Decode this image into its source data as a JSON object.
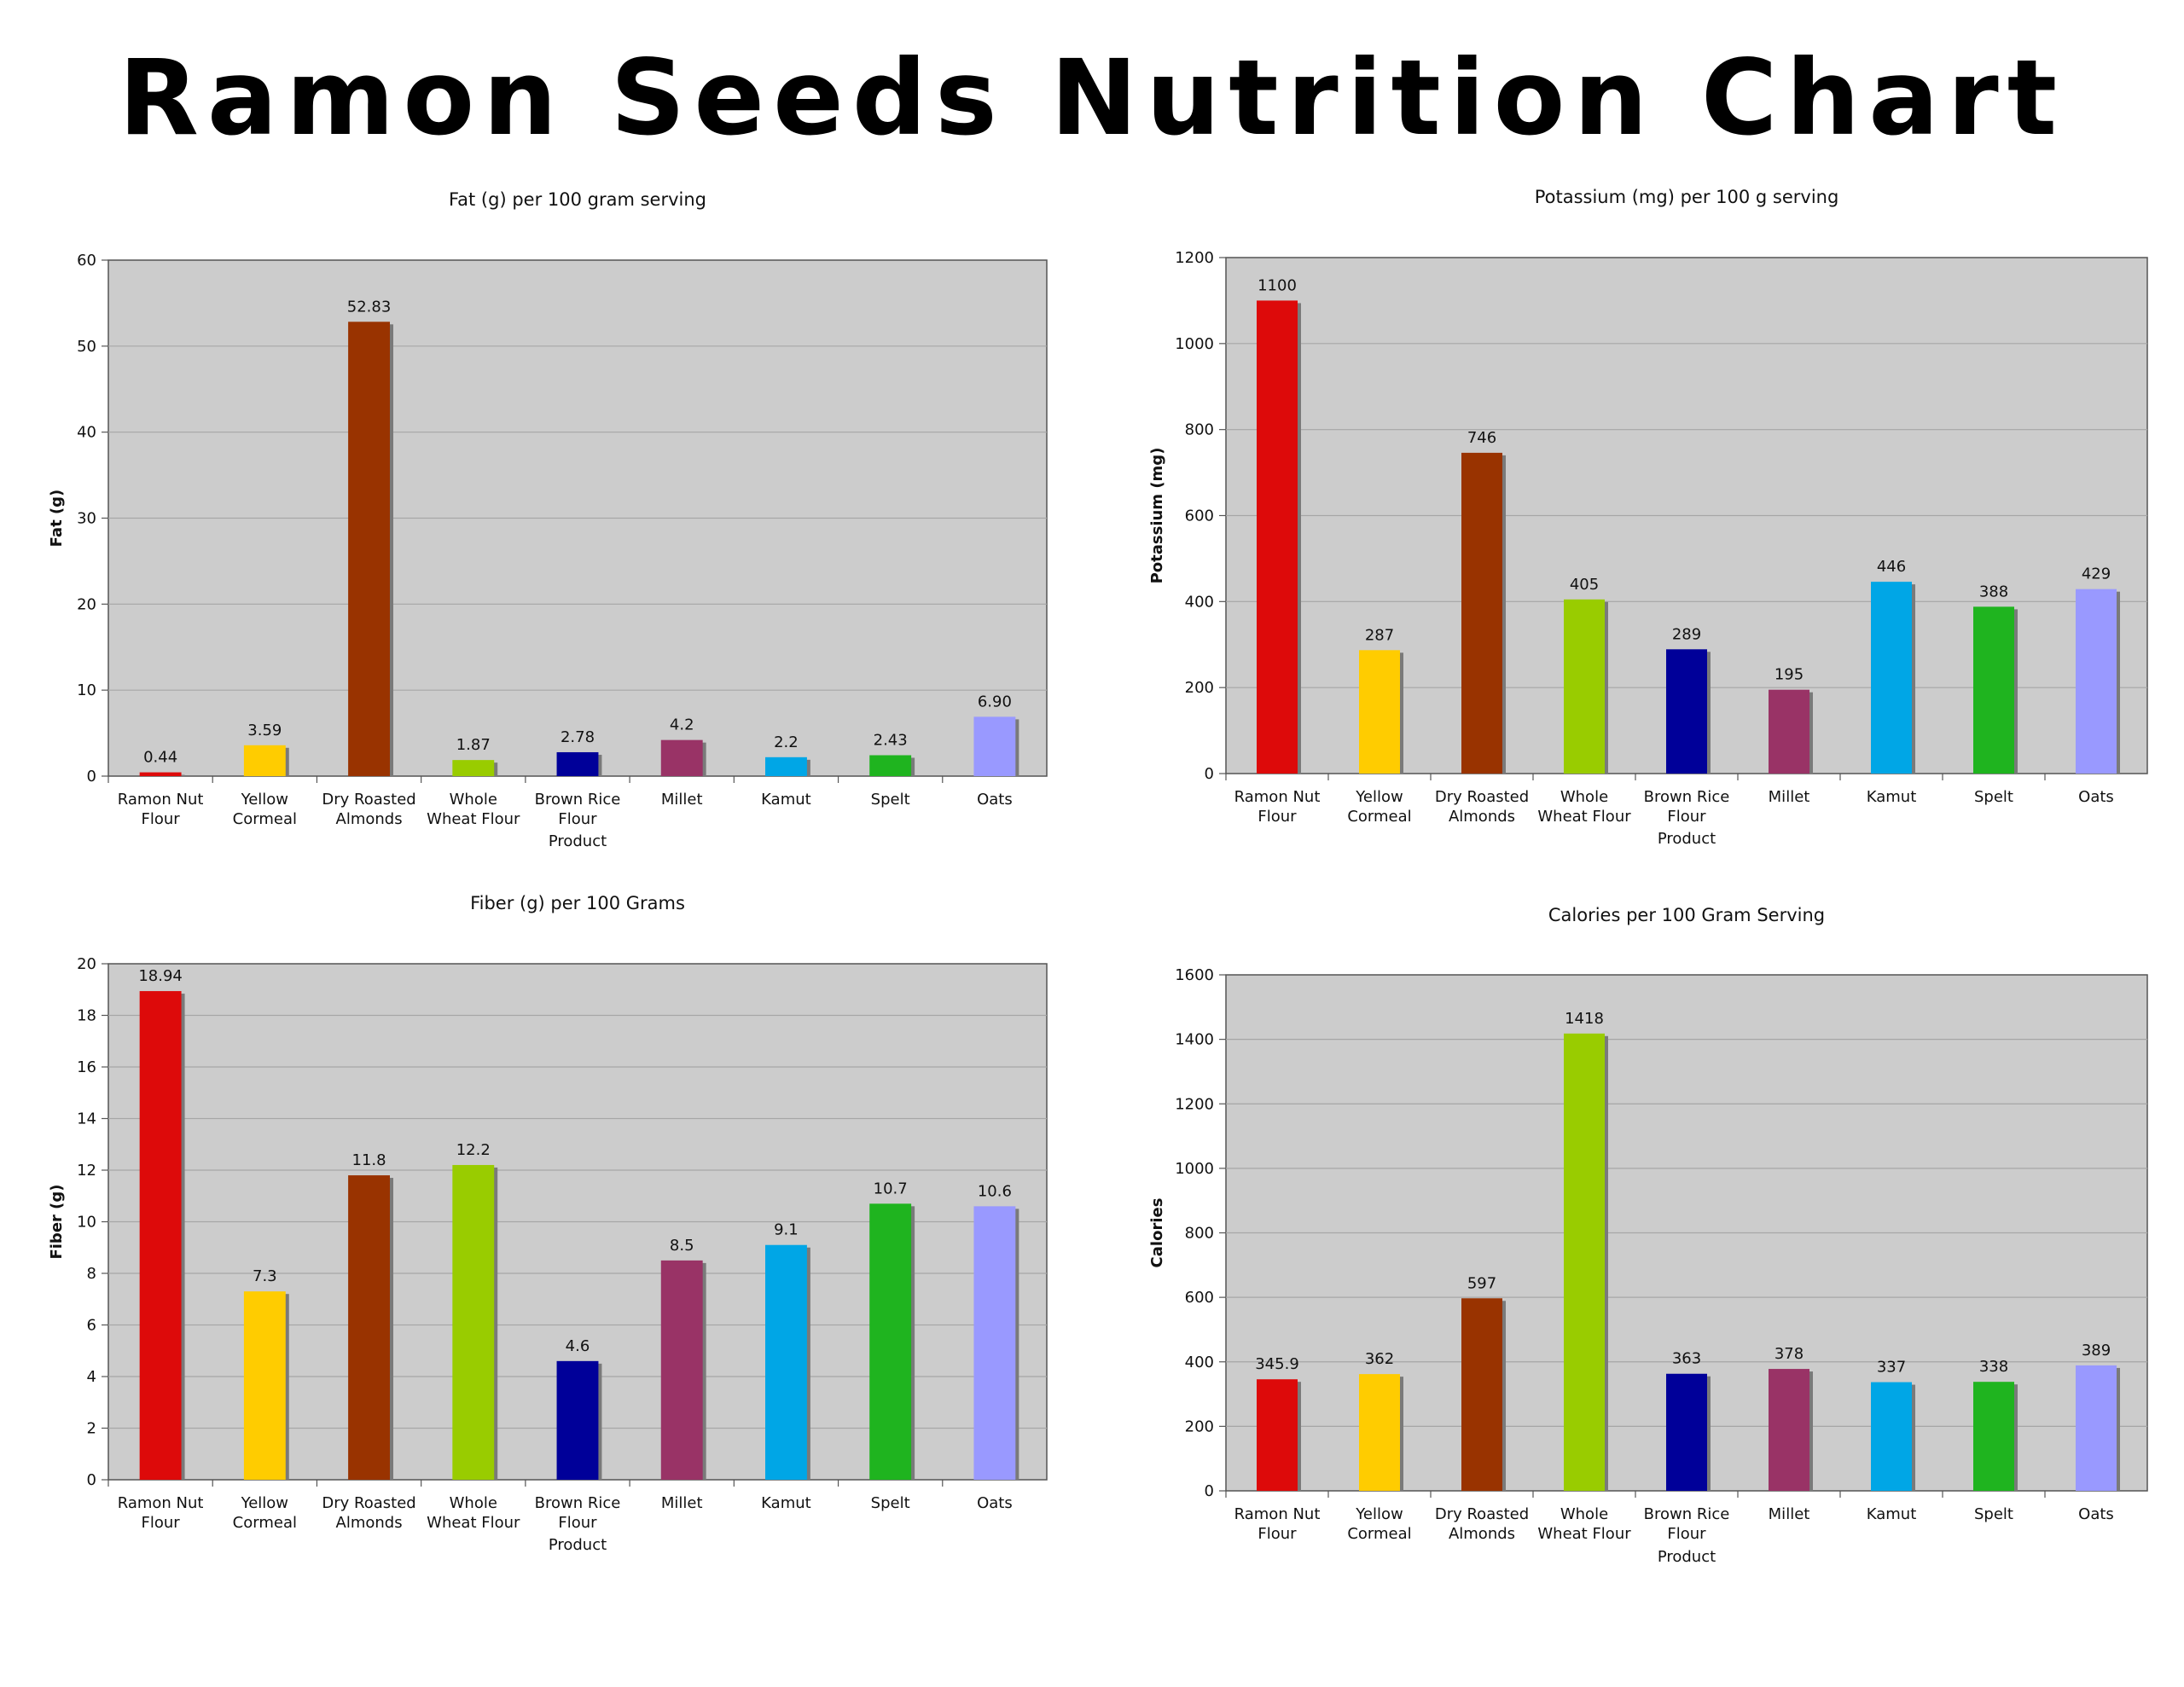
{
  "title": "Ramon Seeds Nutrition Chart",
  "chart_data": [
    {
      "type": "bar",
      "title": "Fat (g) per 100 gram serving",
      "xlabel": "Product",
      "ylabel": "Fat (g)",
      "ylim": [
        0,
        60
      ],
      "yticks": [
        0,
        10,
        20,
        30,
        40,
        50,
        60
      ],
      "grid": true,
      "categories": [
        [
          "Ramon Nut",
          "Flour"
        ],
        [
          "Yellow",
          "Cormeal"
        ],
        [
          "Dry Roasted",
          "Almonds"
        ],
        [
          "Whole",
          "Wheat Flour"
        ],
        [
          "Brown Rice",
          "Flour"
        ],
        [
          "Millet"
        ],
        [
          "Kamut"
        ],
        [
          "Spelt"
        ],
        [
          "Oats"
        ]
      ],
      "values": [
        0.44,
        3.59,
        52.83,
        1.87,
        2.78,
        4.2,
        2.2,
        2.43,
        6.9
      ],
      "labels": [
        "0.44",
        "3.59",
        "52.83",
        "1.87",
        "2.78",
        "4.2",
        "2.2",
        "2.43",
        "6.90"
      ]
    },
    {
      "type": "bar",
      "title": "Potassium (mg) per 100 g serving",
      "xlabel": "Product",
      "ylabel": "Potassium (mg)",
      "ylim": [
        0,
        1200
      ],
      "yticks": [
        0,
        200,
        400,
        600,
        800,
        1000,
        1200
      ],
      "grid": true,
      "categories": [
        [
          "Ramon Nut",
          "Flour"
        ],
        [
          "Yellow",
          "Cormeal"
        ],
        [
          "Dry Roasted",
          "Almonds"
        ],
        [
          "Whole",
          "Wheat Flour"
        ],
        [
          "Brown Rice",
          "Flour"
        ],
        [
          "Millet"
        ],
        [
          "Kamut"
        ],
        [
          "Spelt"
        ],
        [
          "Oats"
        ]
      ],
      "values": [
        1100,
        287,
        746,
        405,
        289,
        195,
        446,
        388,
        429
      ],
      "labels": [
        "1100",
        "287",
        "746",
        "405",
        "289",
        "195",
        "446",
        "388",
        "429"
      ]
    },
    {
      "type": "bar",
      "title": "Fiber (g) per 100 Grams",
      "xlabel": "Product",
      "ylabel": "Fiber (g)",
      "ylim": [
        0,
        20
      ],
      "yticks": [
        0,
        2,
        4,
        6,
        8,
        10,
        12,
        14,
        16,
        18,
        20
      ],
      "grid": true,
      "categories": [
        [
          "Ramon Nut",
          "Flour"
        ],
        [
          "Yellow",
          "Cormeal"
        ],
        [
          "Dry Roasted",
          "Almonds"
        ],
        [
          "Whole",
          "Wheat Flour"
        ],
        [
          "Brown Rice",
          "Flour"
        ],
        [
          "Millet"
        ],
        [
          "Kamut"
        ],
        [
          "Spelt"
        ],
        [
          "Oats"
        ]
      ],
      "values": [
        18.94,
        7.3,
        11.8,
        12.2,
        4.6,
        8.5,
        9.1,
        10.7,
        10.6
      ],
      "labels": [
        "18.94",
        "7.3",
        "11.8",
        "12.2",
        "4.6",
        "8.5",
        "9.1",
        "10.7",
        "10.6"
      ]
    },
    {
      "type": "bar",
      "title": "Calories per 100 Gram Serving",
      "xlabel": "Product",
      "ylabel": "Calories",
      "ylim": [
        0,
        1600
      ],
      "yticks": [
        0,
        200,
        400,
        600,
        800,
        1000,
        1200,
        1400,
        1600
      ],
      "grid": true,
      "categories": [
        [
          "Ramon Nut",
          "Flour"
        ],
        [
          "Yellow",
          "Cormeal"
        ],
        [
          "Dry Roasted",
          "Almonds"
        ],
        [
          "Whole",
          "Wheat Flour"
        ],
        [
          "Brown Rice",
          "Flour"
        ],
        [
          "Millet"
        ],
        [
          "Kamut"
        ],
        [
          "Spelt"
        ],
        [
          "Oats"
        ]
      ],
      "values": [
        345.9,
        362,
        597,
        1418,
        363,
        378,
        337,
        338,
        389
      ],
      "labels": [
        "345.9",
        "362",
        "597",
        "1418",
        "363",
        "378",
        "337",
        "338",
        "389"
      ]
    }
  ],
  "colors": {
    "bars": [
      "#dd0a0a",
      "#ffcc00",
      "#993300",
      "#99cc00",
      "#000099",
      "#993366",
      "#00a6e6",
      "#1fb41f",
      "#9999ff"
    ],
    "plot_bg": "#cccccc",
    "gridline": "#a6a6a6",
    "bar_shadow": "#7a7a7a",
    "axis": "#555555"
  }
}
